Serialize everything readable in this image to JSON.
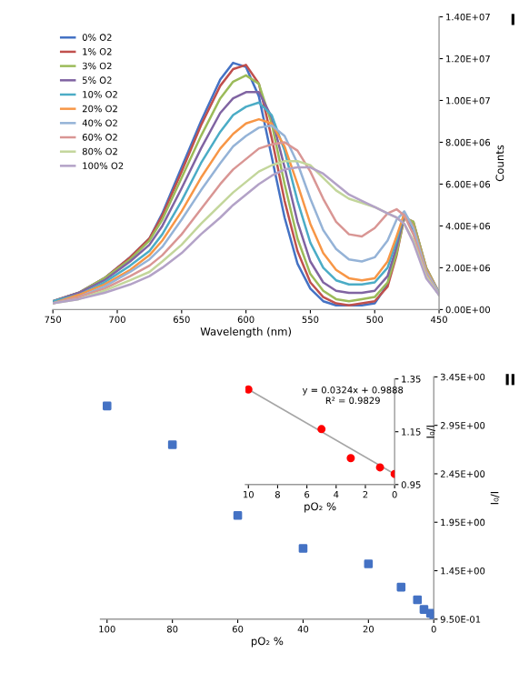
{
  "chart_data": [
    {
      "type": "line",
      "xlabel": "Wavelength (nm)",
      "ylabel": "Counts",
      "annotations": [
        "I"
      ],
      "x": [
        750,
        730,
        710,
        690,
        675,
        665,
        650,
        635,
        620,
        610,
        600,
        590,
        580,
        570,
        560,
        550,
        540,
        530,
        520,
        510,
        500,
        490,
        483,
        477,
        470,
        460,
        450
      ],
      "series": [
        {
          "name": "0% O2",
          "color": "#4472c4",
          "values": [
            400000.0,
            800000.0,
            1500000.0,
            2500000.0,
            3400000.0,
            4600000.0,
            6800000.0,
            9000000.0,
            11000000.0,
            11800000.0,
            11600000.0,
            10200000.0,
            7300000.0,
            4400000.0,
            2200000.0,
            1000000.0,
            400000.0,
            200000.0,
            200000.0,
            200000.0,
            300000.0,
            1200000.0,
            3000000.0,
            4600000.0,
            3800000.0,
            1600000.0,
            700000.0
          ]
        },
        {
          "name": "1% O2",
          "color": "#c0504d",
          "values": [
            400000.0,
            800000.0,
            1500000.0,
            2500000.0,
            3400000.0,
            4500000.0,
            6600000.0,
            8800000.0,
            10700000.0,
            11500000.0,
            11700000.0,
            10800000.0,
            8200000.0,
            5200000.0,
            2800000.0,
            1300000.0,
            600000.0,
            300000.0,
            200000.0,
            300000.0,
            400000.0,
            1100000.0,
            2600000.0,
            4400000.0,
            4200000.0,
            2000000.0,
            800000.0
          ]
        },
        {
          "name": "3% O2",
          "color": "#9bbb59",
          "values": [
            400000.0,
            800000.0,
            1500000.0,
            2400000.0,
            3300000.0,
            4300000.0,
            6300000.0,
            8300000.0,
            10100000.0,
            10900000.0,
            11200000.0,
            10800000.0,
            8900000.0,
            6000000.0,
            3400000.0,
            1700000.0,
            900000.0,
            500000.0,
            400000.0,
            500000.0,
            600000.0,
            1300000.0,
            2700000.0,
            4400000.0,
            4200000.0,
            2000000.0,
            800000.0
          ]
        },
        {
          "name": "5% O2",
          "color": "#8064a2",
          "values": [
            400000.0,
            800000.0,
            1400000.0,
            2300000.0,
            3100000.0,
            4000000.0,
            5800000.0,
            7700000.0,
            9400000.0,
            10100000.0,
            10400000.0,
            10400000.0,
            9200000.0,
            6800000.0,
            4200000.0,
            2300000.0,
            1300000.0,
            900000.0,
            800000.0,
            800000.0,
            900000.0,
            1600000.0,
            3000000.0,
            4500000.0,
            4000000.0,
            1900000.0,
            800000.0
          ]
        },
        {
          "name": "10% O2",
          "color": "#4bacc6",
          "values": [
            400000.0,
            700000.0,
            1300000.0,
            2100000.0,
            2800000.0,
            3600000.0,
            5200000.0,
            7000000.0,
            8500000.0,
            9300000.0,
            9700000.0,
            9900000.0,
            9300000.0,
            7600000.0,
            5200000.0,
            3200000.0,
            2000000.0,
            1400000.0,
            1200000.0,
            1200000.0,
            1300000.0,
            2000000.0,
            3300000.0,
            4600000.0,
            4000000.0,
            1900000.0,
            800000.0
          ]
        },
        {
          "name": "20% O2",
          "color": "#f79646",
          "values": [
            300000.0,
            700000.0,
            1200000.0,
            1900000.0,
            2600000.0,
            3300000.0,
            4700000.0,
            6300000.0,
            7700000.0,
            8400000.0,
            8900000.0,
            9100000.0,
            8900000.0,
            7800000.0,
            6000000.0,
            4100000.0,
            2700000.0,
            1900000.0,
            1500000.0,
            1400000.0,
            1500000.0,
            2300000.0,
            3500000.0,
            4600000.0,
            4000000.0,
            1900000.0,
            800000.0
          ]
        },
        {
          "name": "40% O2",
          "color": "#95b3d7",
          "values": [
            300000.0,
            600000.0,
            1100000.0,
            1800000.0,
            2400000.0,
            3000000.0,
            4300000.0,
            5700000.0,
            7000000.0,
            7800000.0,
            8300000.0,
            8700000.0,
            8800000.0,
            8300000.0,
            7000000.0,
            5300000.0,
            3800000.0,
            2900000.0,
            2400000.0,
            2300000.0,
            2500000.0,
            3300000.0,
            4300000.0,
            4700000.0,
            3900000.0,
            1800000.0,
            800000.0
          ]
        },
        {
          "name": "60% O2",
          "color": "#d99694",
          "values": [
            300000.0,
            600000.0,
            1000000.0,
            1600000.0,
            2100000.0,
            2600000.0,
            3600000.0,
            4800000.0,
            6000000.0,
            6700000.0,
            7200000.0,
            7700000.0,
            7900000.0,
            8000000.0,
            7600000.0,
            6600000.0,
            5300000.0,
            4200000.0,
            3600000.0,
            3500000.0,
            3900000.0,
            4600000.0,
            4800000.0,
            4500000.0,
            3600000.0,
            1700000.0,
            700000.0
          ]
        },
        {
          "name": "80% O2",
          "color": "#c3d69b",
          "values": [
            300000.0,
            500000.0,
            900000.0,
            1400000.0,
            1800000.0,
            2300000.0,
            3100000.0,
            4100000.0,
            5000000.0,
            5600000.0,
            6100000.0,
            6600000.0,
            6900000.0,
            7100000.0,
            7100000.0,
            6900000.0,
            6300000.0,
            5700000.0,
            5300000.0,
            5100000.0,
            4900000.0,
            4600000.0,
            4400000.0,
            4100000.0,
            3300000.0,
            1600000.0,
            700000.0
          ]
        },
        {
          "name": "100% O2",
          "color": "#b3a2c7",
          "values": [
            300000.0,
            500000.0,
            800000.0,
            1200000.0,
            1600000.0,
            2000000.0,
            2700000.0,
            3600000.0,
            4400000.0,
            5000000.0,
            5500000.0,
            6000000.0,
            6400000.0,
            6700000.0,
            6800000.0,
            6800000.0,
            6500000.0,
            6000000.0,
            5500000.0,
            5200000.0,
            4900000.0,
            4600000.0,
            4400000.0,
            4100000.0,
            3200000.0,
            1500000.0,
            700000.0
          ]
        }
      ],
      "xlim": [
        750,
        450
      ],
      "xticks": [
        750,
        700,
        650,
        600,
        550,
        500,
        450
      ],
      "ylim": [
        0,
        14000000
      ],
      "yticks": [
        {
          "value": 0,
          "label": "0.00E+00"
        },
        {
          "value": 2000000,
          "label": "2.00E+06"
        },
        {
          "value": 4000000,
          "label": "4.00E+06"
        },
        {
          "value": 6000000,
          "label": "6.00E+06"
        },
        {
          "value": 8000000,
          "label": "8.00E+06"
        },
        {
          "value": 10000000,
          "label": "1.00E+07"
        },
        {
          "value": 12000000,
          "label": "1.20E+07"
        },
        {
          "value": 14000000,
          "label": "1.40E+07"
        }
      ],
      "legend": "top left",
      "marker": "none",
      "line_style": "solid",
      "grid": false
    },
    {
      "type": "scatter",
      "xlabel": "pO₂ %",
      "ylabel": "I₀/I",
      "annotations": [
        "II"
      ],
      "x": [
        100,
        80,
        60,
        40,
        20,
        10,
        5,
        3,
        1,
        0
      ],
      "series": [
        {
          "color": "#4472c4",
          "values": [
            3.15,
            2.75,
            2.02,
            1.68,
            1.52,
            1.28,
            1.15,
            1.05,
            1.01,
            0.99
          ]
        }
      ],
      "xlim": [
        102,
        0
      ],
      "xticks": [
        0,
        20,
        40,
        60,
        80,
        100
      ],
      "ylim": [
        0.95,
        3.45
      ],
      "yticks": [
        {
          "value": 0.95,
          "label": "9.50E-01"
        },
        {
          "value": 1.45,
          "label": "1.45E+00"
        },
        {
          "value": 1.95,
          "label": "1.95E+00"
        },
        {
          "value": 2.45,
          "label": "2.45E+00"
        },
        {
          "value": 2.95,
          "label": "2.95E+00"
        },
        {
          "value": 3.45,
          "label": "3.45E+00"
        }
      ],
      "marker": "square",
      "grid": false
    },
    {
      "type": "scatter",
      "xlabel": "pO₂ %",
      "ylabel": "I₀/I",
      "annotations": [
        "y = 0.0324x + 0.9888",
        "R² = 0.9829"
      ],
      "x": [
        10,
        5,
        3,
        1,
        0
      ],
      "series": [
        {
          "color": "#ff0000",
          "values": [
            1.31,
            1.16,
            1.05,
            1.015,
            0.99
          ]
        },
        {
          "type": "line",
          "color": "#a6a6a6",
          "marker": "none",
          "x": [
            0,
            10
          ],
          "values": [
            0.99,
            1.31
          ]
        }
      ],
      "xlim": [
        10.2,
        0
      ],
      "xticks": [
        0,
        2,
        4,
        6,
        8,
        10
      ],
      "ylim": [
        0.95,
        1.35
      ],
      "yticks": [
        {
          "value": 0.95,
          "label": "0.95"
        },
        {
          "value": 1.15,
          "label": "1.15"
        },
        {
          "value": 1.35,
          "label": "1.35"
        }
      ],
      "marker": "circle",
      "grid": false
    }
  ]
}
